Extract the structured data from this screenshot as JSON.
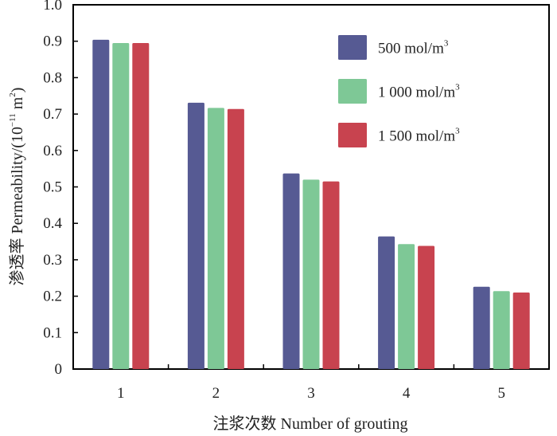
{
  "chart_data": {
    "type": "bar",
    "categories": [
      "1",
      "2",
      "3",
      "4",
      "5"
    ],
    "series": [
      {
        "name": "500 mol/m",
        "sup": "3",
        "color": "#565a93",
        "values": [
          0.904,
          0.731,
          0.537,
          0.364,
          0.226
        ]
      },
      {
        "name": "1 000 mol/m",
        "sup": "3",
        "color": "#7ec896",
        "values": [
          0.895,
          0.717,
          0.52,
          0.343,
          0.214
        ]
      },
      {
        "name": "1 500 mol/m",
        "sup": "3",
        "color": "#c8434f",
        "values": [
          0.895,
          0.714,
          0.515,
          0.338,
          0.21
        ]
      }
    ],
    "yticks": [
      "0",
      "0.1",
      "0.2",
      "0.3",
      "0.4",
      "0.5",
      "0.6",
      "0.7",
      "0.8",
      "0.9",
      "1.0"
    ],
    "ylim": [
      0,
      1.0
    ],
    "xlabel": "注浆次数 Number of grouting",
    "ylabel": {
      "prefix": "渗透率 Permeability/(10",
      "exp1": "−11",
      "mid": " m",
      "exp2": "2",
      "suffix": ")"
    },
    "legend_position": "top-right",
    "grid": false
  }
}
